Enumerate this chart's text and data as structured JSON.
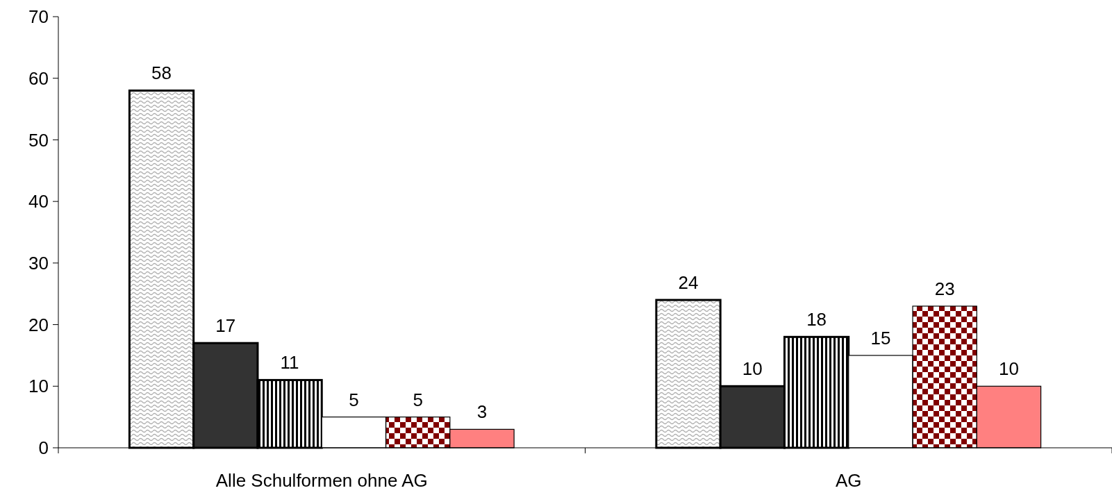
{
  "chart_data": {
    "type": "bar",
    "categories": [
      "Alle Schulformen ohne AG",
      "AG"
    ],
    "series": [
      {
        "color": "#b0b0b0",
        "values": [
          58,
          24
        ]
      },
      {
        "color": "#333333",
        "values": [
          17,
          10
        ]
      },
      {
        "color": "#000000",
        "values": [
          11,
          18
        ]
      },
      {
        "color": "#ffffff",
        "values": [
          5,
          15
        ]
      },
      {
        "color": "#800000",
        "values": [
          5,
          23
        ]
      },
      {
        "color": "#ff8080",
        "values": [
          3,
          10
        ]
      }
    ],
    "ylim": [
      0,
      70
    ],
    "yticks": [
      0,
      10,
      20,
      30,
      40,
      50,
      60,
      70
    ],
    "data_labels": true,
    "grid": false
  }
}
